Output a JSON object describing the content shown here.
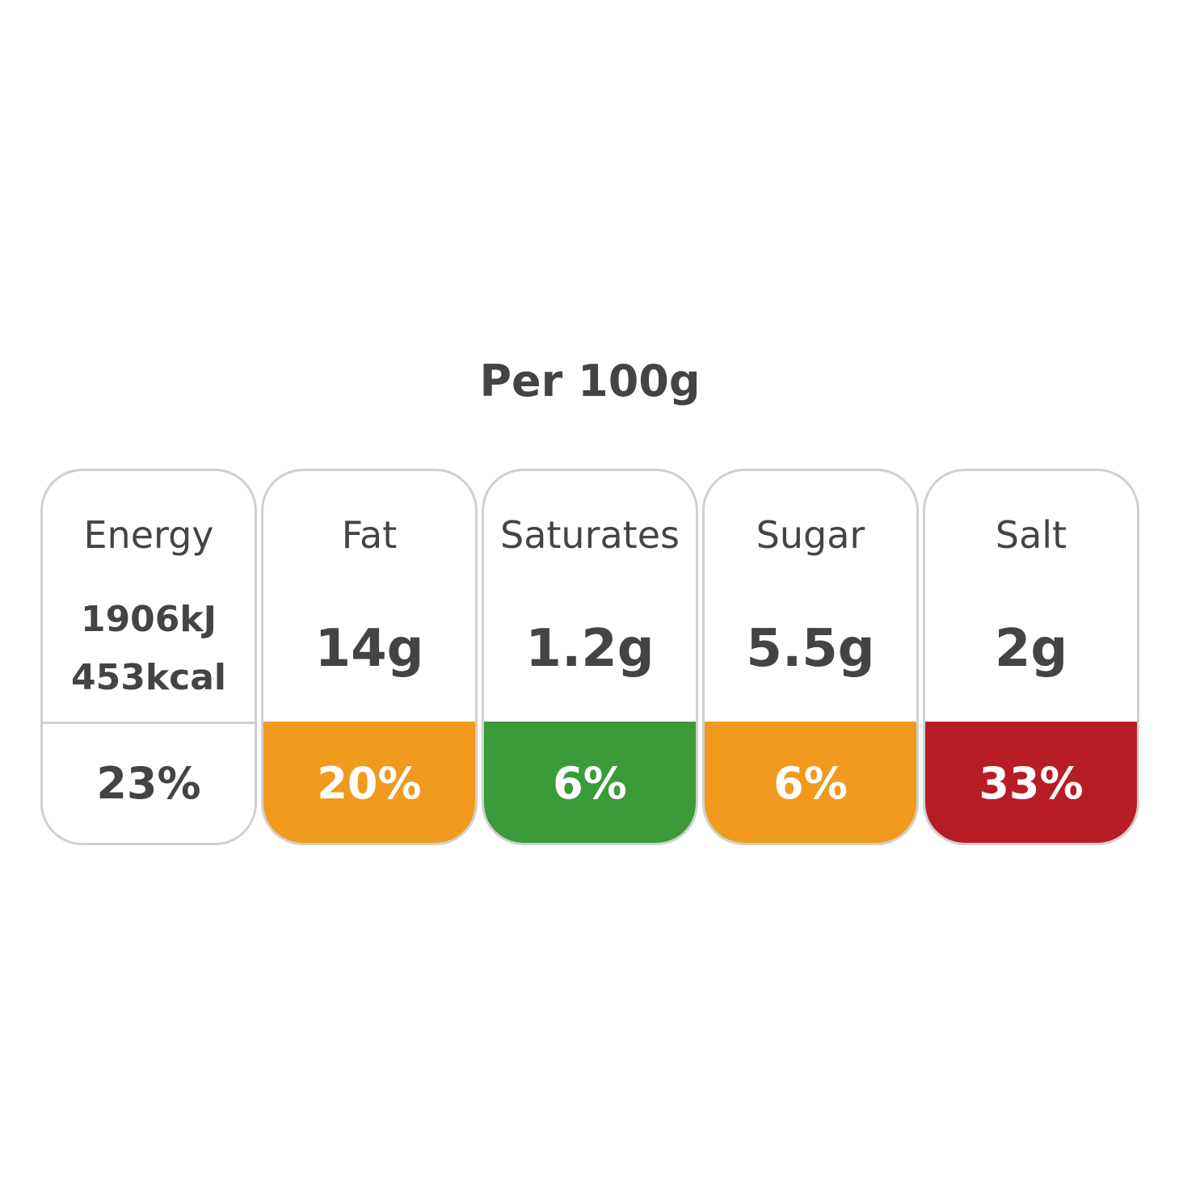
{
  "title": "Per 100g",
  "items": [
    {
      "label": "Energy",
      "amount": [
        "1906kJ",
        "453kcal"
      ],
      "percent": "23%",
      "color": "#ffffff",
      "percent_text_color": "#444444"
    },
    {
      "label": "Fat",
      "amount": [
        "14g"
      ],
      "percent": "20%",
      "color": "#f09a1e",
      "percent_text_color": "#ffffff"
    },
    {
      "label": "Saturates",
      "amount": [
        "1.2g"
      ],
      "percent": "6%",
      "color": "#3b9a3a",
      "percent_text_color": "#ffffff"
    },
    {
      "label": "Sugar",
      "amount": [
        "5.5g"
      ],
      "percent": "6%",
      "color": "#f09a1e",
      "percent_text_color": "#ffffff"
    },
    {
      "label": "Salt",
      "amount": [
        "2g"
      ],
      "percent": "33%",
      "color": "#b81d26",
      "percent_text_color": "#ffffff"
    }
  ]
}
